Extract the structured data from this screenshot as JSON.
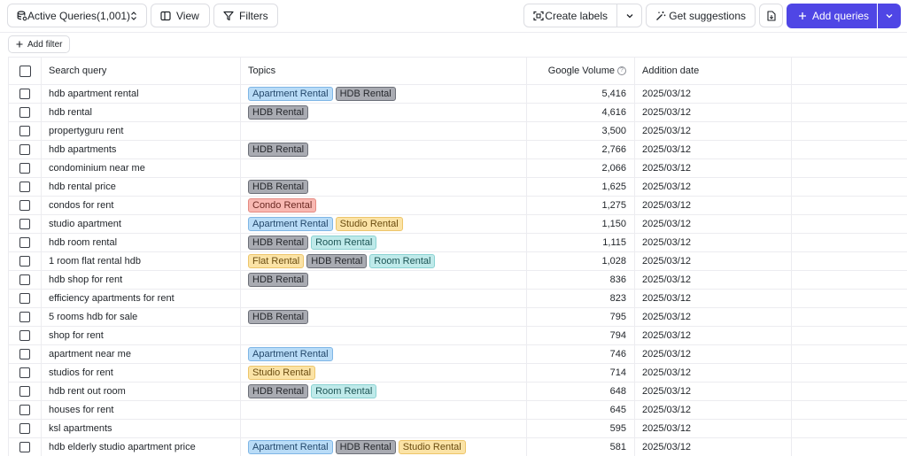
{
  "toolbar": {
    "queries_label": "Active Queries",
    "queries_count": "(1,001)",
    "view_label": "View",
    "filters_label": "Filters",
    "create_labels_label": "Create labels",
    "suggestions_label": "Get suggestions",
    "add_queries_label": "Add queries",
    "accent_color": "#4f46e5"
  },
  "filterbar": {
    "add_filter_label": "Add filter"
  },
  "table": {
    "columns": {
      "query": "Search query",
      "topics": "Topics",
      "volume": "Google Volume",
      "date": "Addition date"
    },
    "rows": [
      {
        "query": "hdb apartment rental",
        "topics": [
          "Apartment Rental",
          "HDB Rental"
        ],
        "volume": "5,416",
        "date": "2025/03/12"
      },
      {
        "query": "hdb rental",
        "topics": [
          "HDB Rental"
        ],
        "volume": "4,616",
        "date": "2025/03/12"
      },
      {
        "query": "propertyguru rent",
        "topics": [],
        "volume": "3,500",
        "date": "2025/03/12"
      },
      {
        "query": "hdb apartments",
        "topics": [
          "HDB Rental"
        ],
        "volume": "2,766",
        "date": "2025/03/12"
      },
      {
        "query": "condominium near me",
        "topics": [],
        "volume": "2,066",
        "date": "2025/03/12"
      },
      {
        "query": "hdb rental price",
        "topics": [
          "HDB Rental"
        ],
        "volume": "1,625",
        "date": "2025/03/12"
      },
      {
        "query": "condos for rent",
        "topics": [
          "Condo Rental"
        ],
        "volume": "1,275",
        "date": "2025/03/12"
      },
      {
        "query": "studio apartment",
        "topics": [
          "Apartment Rental",
          "Studio Rental"
        ],
        "volume": "1,150",
        "date": "2025/03/12"
      },
      {
        "query": "hdb room rental",
        "topics": [
          "HDB Rental",
          "Room Rental"
        ],
        "volume": "1,115",
        "date": "2025/03/12"
      },
      {
        "query": "1 room flat rental hdb",
        "topics": [
          "Flat Rental",
          "HDB Rental",
          "Room Rental"
        ],
        "volume": "1,028",
        "date": "2025/03/12"
      },
      {
        "query": "hdb shop for rent",
        "topics": [
          "HDB Rental"
        ],
        "volume": "836",
        "date": "2025/03/12"
      },
      {
        "query": "efficiency apartments for rent",
        "topics": [],
        "volume": "823",
        "date": "2025/03/12"
      },
      {
        "query": "5 rooms hdb for sale",
        "topics": [
          "HDB Rental"
        ],
        "volume": "795",
        "date": "2025/03/12"
      },
      {
        "query": "shop for rent",
        "topics": [],
        "volume": "794",
        "date": "2025/03/12"
      },
      {
        "query": "apartment near me",
        "topics": [
          "Apartment Rental"
        ],
        "volume": "746",
        "date": "2025/03/12"
      },
      {
        "query": "studios for rent",
        "topics": [
          "Studio Rental"
        ],
        "volume": "714",
        "date": "2025/03/12"
      },
      {
        "query": "hdb rent out room",
        "topics": [
          "HDB Rental",
          "Room Rental"
        ],
        "volume": "648",
        "date": "2025/03/12"
      },
      {
        "query": "houses for rent",
        "topics": [],
        "volume": "645",
        "date": "2025/03/12"
      },
      {
        "query": "ksl apartments",
        "topics": [],
        "volume": "595",
        "date": "2025/03/12"
      },
      {
        "query": "hdb elderly studio apartment price",
        "topics": [
          "Apartment Rental",
          "HDB Rental",
          "Studio Rental"
        ],
        "volume": "581",
        "date": "2025/03/12"
      }
    ]
  },
  "topic_colors": {
    "Apartment Rental": "apt",
    "HDB Rental": "hdb",
    "Condo Rental": "condo",
    "Studio Rental": "studio",
    "Room Rental": "room",
    "Flat Rental": "flat"
  }
}
